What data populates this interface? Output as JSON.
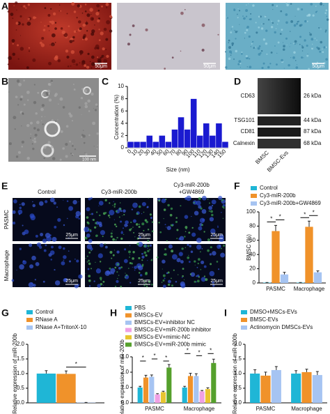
{
  "panels": {
    "letters": [
      "A",
      "B",
      "C",
      "D",
      "E",
      "F",
      "G",
      "H",
      "I"
    ]
  },
  "images": {
    "stain_scale_bar": "50μm",
    "em_scale_bar": "100 nm"
  },
  "blot": {
    "bands": [
      {
        "name": "CD63",
        "size": "26 kDa"
      },
      {
        "name": "TSG101",
        "size": "44 kDa"
      },
      {
        "name": "CD81",
        "size": "87 kDa"
      },
      {
        "name": "Calnexin",
        "size": "68 kDa"
      }
    ],
    "lanes": [
      "BMSC",
      "BMSC-Evs"
    ]
  },
  "microscopy": {
    "columns": [
      [
        "Control"
      ],
      [
        "Cy3-miR-200b"
      ],
      [
        "Cy3-miR-200b",
        "+GW4869"
      ]
    ],
    "rows": [
      "PASMC",
      "Macrophage"
    ],
    "scale_bar": "25μm"
  },
  "chart_data": [
    {
      "type": "bar",
      "x_label": "Size (nm)",
      "y_label": "Concentration (%)",
      "color": "#1a1ad0",
      "categories": [
        "0",
        "10",
        "20",
        "30",
        "40",
        "50",
        "60",
        "70",
        "80",
        "90",
        "100",
        "110",
        "120",
        "130",
        "140",
        "150"
      ],
      "values": [
        1,
        1,
        1,
        2,
        1,
        2,
        1,
        3,
        5,
        3,
        8,
        2,
        4,
        2,
        4,
        1
      ],
      "ylim": [
        0,
        10
      ],
      "yticks": [
        0,
        2,
        4,
        6,
        8,
        10
      ]
    },
    {
      "type": "grouped_bar",
      "y_label": "BMSC (%)",
      "categories": [
        "PASMC",
        "Macrophage"
      ],
      "ylim": [
        0,
        100
      ],
      "yticks": [
        0,
        20,
        40,
        60,
        80,
        100
      ],
      "series": [
        {
          "name": "Control",
          "color": "#1fb6d6",
          "values": [
            0.5,
            0.5
          ],
          "errors": [
            0.2,
            0.2
          ]
        },
        {
          "name": "Cy3-miR-200b",
          "color": "#f0922a",
          "values": [
            73,
            79
          ],
          "errors": [
            8,
            8
          ]
        },
        {
          "name": "Cy3-miR-200b+GW4869",
          "color": "#a6c4f2",
          "values": [
            12,
            15
          ],
          "errors": [
            3,
            2
          ]
        }
      ],
      "significance": [
        "*",
        "*",
        "*",
        "*"
      ]
    },
    {
      "type": "grouped_bar",
      "y_label": "Relative expression of miR-200b",
      "categories": [
        null
      ],
      "ylim": [
        0,
        2
      ],
      "yticks": [
        {
          "value": 0,
          "label": "0.0"
        },
        {
          "value": 0.5,
          "label": "0.5"
        },
        {
          "value": 1,
          "label": "1.0"
        },
        {
          "value": 1.5,
          "label": "1.5"
        },
        {
          "value": 2,
          "label": "2.0"
        }
      ],
      "series": [
        {
          "name": "Control",
          "color": "#1fb6d6",
          "values": [
            1.0
          ],
          "errors": [
            0.1
          ]
        },
        {
          "name": "RNase A",
          "color": "#f0922a",
          "values": [
            0.99
          ],
          "errors": [
            0.1
          ]
        },
        {
          "name": "RNase A+TritonX-10",
          "color": "#a6c4f2",
          "values": [
            0.01
          ],
          "errors": [
            0.005
          ]
        }
      ],
      "significance": [
        "*"
      ]
    },
    {
      "type": "grouped_bar",
      "y_label": "Relative expression of miR-200b",
      "categories": [
        "PASMC",
        "Macrophage"
      ],
      "ylim": [
        0,
        3
      ],
      "yticks": [
        {
          "value": 0,
          "label": "0.0"
        },
        {
          "value": 1,
          "label": "1.0"
        },
        {
          "value": 2,
          "label": "2.0"
        },
        {
          "value": 3,
          "label": "3.0"
        }
      ],
      "series": [
        {
          "name": "PBS",
          "color": "#1fb6d6",
          "values": [
            1.0,
            1.0
          ],
          "errors": [
            0.08,
            0.08
          ]
        },
        {
          "name": "BMSCs-EV",
          "color": "#f0922a",
          "values": [
            1.65,
            1.75
          ],
          "errors": [
            0.15,
            0.18
          ]
        },
        {
          "name": "BMSCs-EV+inhibitor NC",
          "color": "#a6c4f2",
          "values": [
            1.7,
            1.75
          ],
          "errors": [
            0.12,
            0.15
          ]
        },
        {
          "name": "BMSCs-EV+miR-200b inhibitor",
          "color": "#f0a0e4",
          "values": [
            0.55,
            0.75
          ],
          "errors": [
            0.05,
            0.06
          ]
        },
        {
          "name": "BMSCs-EV+mimic-NC",
          "color": "#e8c530",
          "values": [
            0.7,
            0.9
          ],
          "errors": [
            0.06,
            0.08
          ]
        },
        {
          "name": "BMSCs-EV+miR-200b mimic",
          "color": "#55a02c",
          "values": [
            2.3,
            2.6
          ],
          "errors": [
            0.2,
            0.25
          ]
        }
      ],
      "significance": [
        "*",
        "*",
        "*",
        "*",
        "*",
        "*"
      ]
    },
    {
      "type": "grouped_bar",
      "y_label": "Relative expression of miR-200b",
      "categories": [
        "PASMC",
        "Macrophage"
      ],
      "ylim": [
        0,
        2
      ],
      "yticks": [
        {
          "value": 0,
          "label": "0.0"
        },
        {
          "value": 0.5,
          "label": "0.5"
        },
        {
          "value": 1,
          "label": "1.0"
        },
        {
          "value": 1.5,
          "label": "1.5"
        },
        {
          "value": 2,
          "label": "2.0"
        }
      ],
      "series": [
        {
          "name": "DMSO+MSCs-EVs",
          "color": "#1fb6d6",
          "values": [
            1.0,
            1.0
          ],
          "errors": [
            0.13,
            0.1
          ]
        },
        {
          "name": "BMSC-EVs",
          "color": "#f0922a",
          "values": [
            0.93,
            1.05
          ],
          "errors": [
            0.12,
            0.1
          ]
        },
        {
          "name": "Actinomycin DMSCs-EVs",
          "color": "#a6c4f2",
          "values": [
            1.12,
            0.95
          ],
          "errors": [
            0.12,
            0.12
          ]
        }
      ]
    }
  ]
}
